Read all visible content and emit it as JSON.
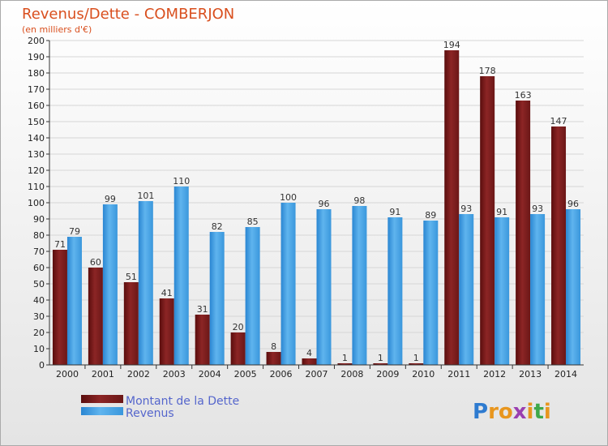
{
  "chart_data": {
    "type": "bar",
    "title": "Revenus/Dette - COMBERJON",
    "subtitle": "(en milliers d'€)",
    "categories": [
      "2000",
      "2001",
      "2002",
      "2003",
      "2004",
      "2005",
      "2006",
      "2007",
      "2008",
      "2009",
      "2010",
      "2011",
      "2012",
      "2013",
      "2014"
    ],
    "series": [
      {
        "name": "Montant de la Dette",
        "color": "#7a1a1a",
        "values": [
          71,
          60,
          51,
          41,
          31,
          20,
          8,
          4,
          1,
          1,
          1,
          194,
          178,
          163,
          147
        ]
      },
      {
        "name": "Revenus",
        "color": "#3d9be0",
        "values": [
          79,
          99,
          101,
          110,
          82,
          85,
          100,
          96,
          98,
          91,
          89,
          93,
          91,
          93,
          96
        ]
      }
    ],
    "ylim": [
      0,
      200
    ],
    "ytick_step": 10,
    "grid": true,
    "legend_position": "bottom-left"
  },
  "legend": {
    "debt_label": "Montant de la Dette",
    "revenue_label": "Revenus"
  },
  "logo": {
    "letters": [
      "P",
      "r",
      "o",
      "x",
      "i",
      "t",
      "i"
    ],
    "colors": [
      "#2e7bd0",
      "#e8961e",
      "#e8961e",
      "#9a3fb0",
      "#e8961e",
      "#3fa84a",
      "#e8961e"
    ]
  }
}
